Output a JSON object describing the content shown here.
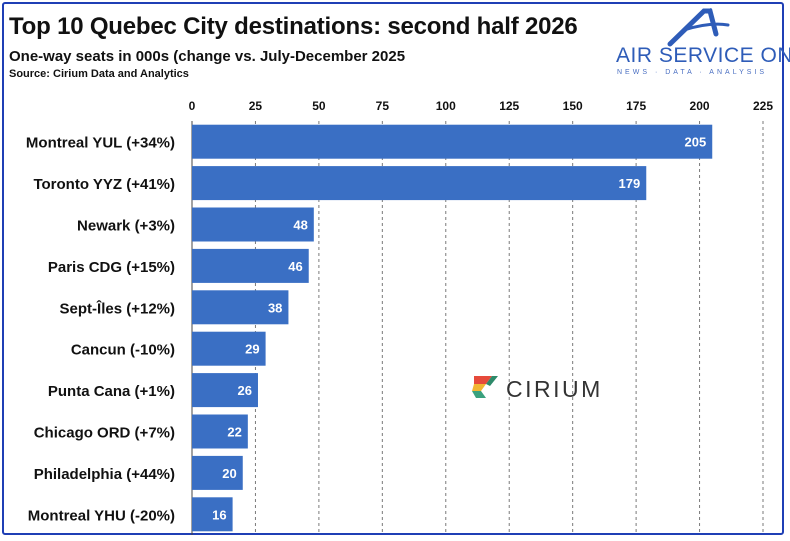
{
  "header": {
    "title": "Top 10 Quebec City destinations: second half 2026",
    "subtitle": "One-way seats in 000s (change vs. July-December 2025",
    "source": "Source: Cirium Data and Analytics"
  },
  "logos": {
    "air_service_one": {
      "name": "AIR SERVICE ONE",
      "tagline": "NEWS · DATA · ANALYSIS",
      "color": "#2e5cb8"
    },
    "cirium": {
      "name": "CIRIUM"
    }
  },
  "colors": {
    "bar": "#3a6fc4",
    "border": "#1f3fb5",
    "grid": "#7a7a7a"
  },
  "chart_data": {
    "type": "bar",
    "orientation": "horizontal",
    "categories": [
      "Montreal YUL (+34%)",
      "Toronto YYZ (+41%)",
      "Newark (+3%)",
      "Paris CDG (+15%)",
      "Sept-Îles (+12%)",
      "Cancun (-10%)",
      "Punta Cana (+1%)",
      "Chicago ORD (+7%)",
      "Philadelphia (+44%)",
      "Montreal YHU (-20%)"
    ],
    "values": [
      205,
      179,
      48,
      46,
      38,
      29,
      26,
      22,
      20,
      16
    ],
    "xlim": [
      0,
      225
    ],
    "xticks": [
      0,
      25,
      50,
      75,
      100,
      125,
      150,
      175,
      200,
      225
    ],
    "x_axis_position": "top",
    "grid": "vertical dashed",
    "data_labels": "inside bar end"
  }
}
